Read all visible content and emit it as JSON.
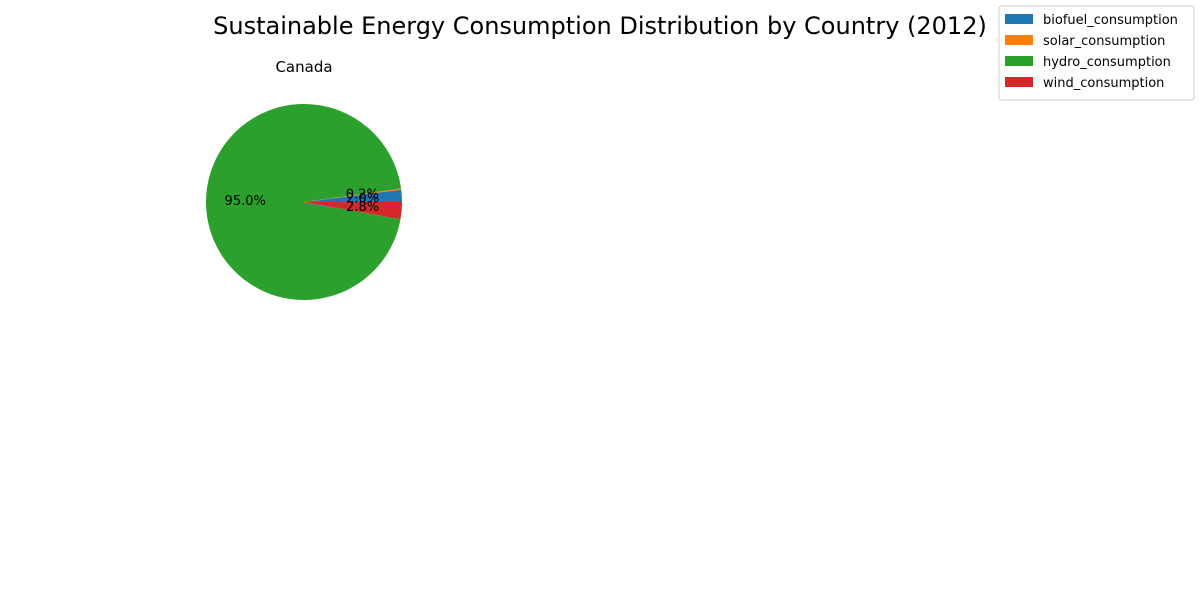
{
  "chart_data": {
    "type": "pie",
    "title": "Sustainable Energy Consumption Distribution by Country (2012)",
    "subplot_title": "Canada",
    "categories": [
      "biofuel_consumption",
      "solar_consumption",
      "hydro_consumption",
      "wind_consumption"
    ],
    "values": [
      2.0,
      0.2,
      95.0,
      2.8
    ],
    "pct_labels": [
      "2.0%",
      "0.2%",
      "95.0%",
      "2.8%"
    ],
    "colors": [
      "#1f77b4",
      "#ff7f0e",
      "#2ca02c",
      "#d62728"
    ],
    "legend_position": "top-right",
    "start_angle_deg": 0,
    "direction": "counterclockwise"
  }
}
